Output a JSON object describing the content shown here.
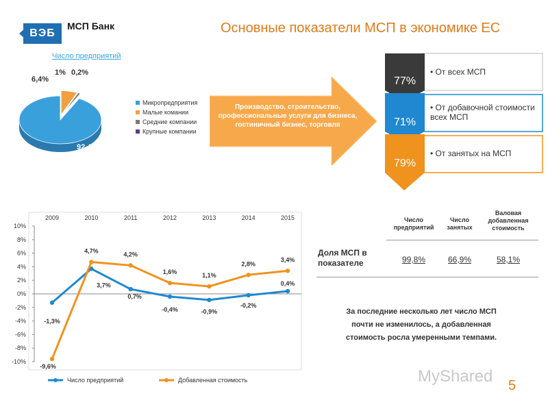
{
  "header": {
    "logo": "ВЭБ",
    "bank_name": "МСП Банк",
    "title": "Основные показатели МСП в экономике ЕС"
  },
  "pie": {
    "title": "Число предприятий",
    "slices": [
      {
        "label": "Микропредприятия",
        "value": 92.4,
        "text": "92,4%",
        "color": "#3aa0dc"
      },
      {
        "label": "Малые комании",
        "value": 6.4,
        "text": "6,4%",
        "color": "#f0a040"
      },
      {
        "label": "Средние компании",
        "value": 1.0,
        "text": "1%",
        "color": "#7a7a7a"
      },
      {
        "label": "Крупные компании",
        "value": 0.2,
        "text": "0,2%",
        "color": "#5a3d8a"
      }
    ]
  },
  "arrow": {
    "text": "Производство, строительство, профессиональные услуги для бизнеса, гостиничный бизнес, торговля",
    "color": "#f7a84a"
  },
  "steps": [
    {
      "pct": "77%",
      "text": "От всех МСП",
      "color": "#3a3a3a"
    },
    {
      "pct": "71%",
      "text": "От добавочной стоимости всех МСП",
      "color": "#1f88d0"
    },
    {
      "pct": "79%",
      "text": "От занятых на МСП",
      "color": "#f0921e"
    }
  ],
  "table": {
    "headers": [
      "Число предприятий",
      "Число занятых",
      "Валовая добавленная стоимость"
    ],
    "row_label": "Доля МСП в показателе",
    "values": [
      "99,8%",
      "66,9%",
      "58,1%"
    ]
  },
  "note": "За последние несколько лет число МСП почти не изменилось, а добавленная стоимость росла умеренными темпами.",
  "watermark": "MyShared",
  "page_number": "5",
  "chart_data": [
    {
      "type": "pie",
      "title": "Число предприятий",
      "categories": [
        "Микропредприятия",
        "Малые комании",
        "Средние компании",
        "Крупные компании"
      ],
      "values": [
        92.4,
        6.4,
        1.0,
        0.2
      ],
      "data_labels": [
        "92,4%",
        "6,4%",
        "1%",
        "0,2%"
      ],
      "legend": "right"
    },
    {
      "type": "line",
      "x": [
        "2009",
        "2010",
        "2011",
        "2012",
        "2013",
        "2014",
        "2015"
      ],
      "x_axis_position": "top",
      "ylim": [
        -10,
        10
      ],
      "yticks": [
        "10%",
        "8%",
        "6%",
        "4%",
        "2%",
        "0%",
        "-2%",
        "-4%",
        "-6%",
        "-8%",
        "-10%"
      ],
      "grid": false,
      "legend": "bottom",
      "series": [
        {
          "name": "Число предприятий",
          "color": "#1f88d0",
          "values": [
            -1.3,
            3.7,
            0.7,
            -0.4,
            -0.9,
            -0.2,
            0.4
          ],
          "labels": [
            "-1,3%",
            "3,7%",
            "0,7%",
            "-0,4%",
            "-0,9%",
            "-0,2%",
            "0,4%"
          ]
        },
        {
          "name": "Добавленная стоимость",
          "color": "#f0921e",
          "values": [
            -9.6,
            4.7,
            4.2,
            1.6,
            1.1,
            2.8,
            3.4
          ],
          "labels": [
            "-9,6%",
            "4,7%",
            "4,2%",
            "1,6%",
            "1,1%",
            "2,8%",
            "3,4%"
          ]
        }
      ]
    }
  ]
}
